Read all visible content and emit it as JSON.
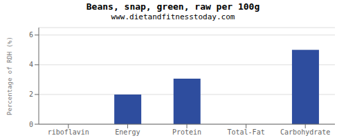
{
  "chart_data": {
    "type": "bar",
    "title": "Beans, snap, green, raw per 100g",
    "subtitle": "www.dietandfitnesstoday.com",
    "categories": [
      "riboflavin",
      "Energy",
      "Protein",
      "Total-Fat",
      "Carbohydrate"
    ],
    "values": [
      0,
      2.0,
      3.07,
      0,
      5.0
    ],
    "color": "#2e4d9e",
    "ylabel": "Percentage of RDH (%)",
    "ylim": [
      0,
      6.5
    ],
    "yticks": [
      0,
      2,
      4,
      6
    ],
    "grid": true
  }
}
